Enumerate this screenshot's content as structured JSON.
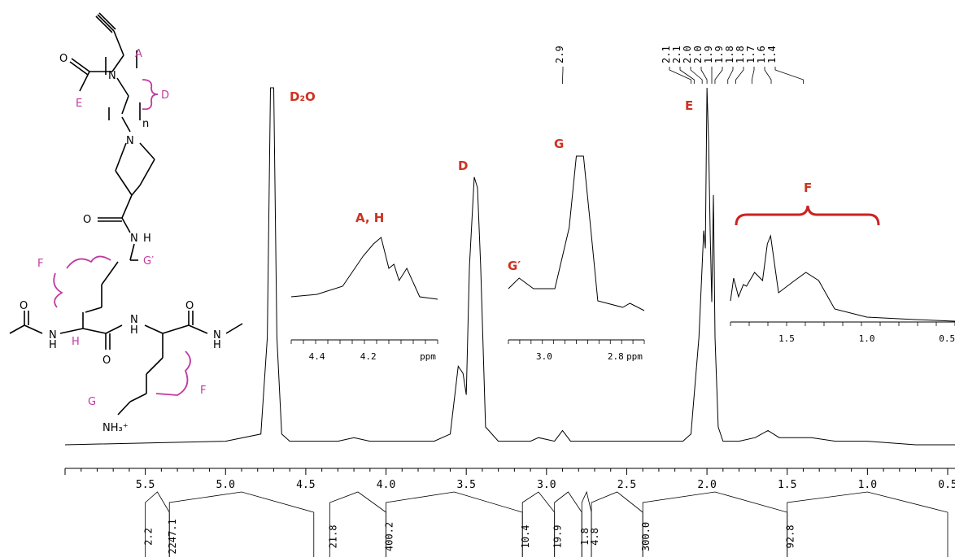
{
  "chart_data": {
    "type": "line",
    "title": "",
    "xlabel": "",
    "ylabel": "",
    "xlim": [
      6.0,
      0.45
    ],
    "x_reversed": true,
    "main_ticks": [
      "5.5",
      "5.0",
      "4.5",
      "4.0",
      "3.5",
      "3.0",
      "2.5",
      "2.0",
      "1.5",
      "1.0",
      "0.5"
    ],
    "peak_top_labels": [
      "2.9",
      "2.1",
      "2.1",
      "2.0",
      "2.0",
      "1.9",
      "1.9",
      "1.8",
      "1.8",
      "1.7",
      "1.6",
      "1.4"
    ],
    "integrals": [
      {
        "label": "2.2",
        "from": 5.5,
        "to": 5.35
      },
      {
        "label": "2247.1",
        "from": 5.35,
        "to": 4.45
      },
      {
        "label": "21.8",
        "from": 4.35,
        "to": 4.0
      },
      {
        "label": "400.2",
        "from": 4.0,
        "to": 3.15
      },
      {
        "label": "10.4",
        "from": 3.15,
        "to": 2.95
      },
      {
        "label": "19.9",
        "from": 2.95,
        "to": 2.78
      },
      {
        "label": "1.8",
        "from": 2.78,
        "to": 2.72
      },
      {
        "label": "4.8",
        "from": 2.72,
        "to": 2.4
      },
      {
        "label": "300.0",
        "from": 2.4,
        "to": 1.5
      },
      {
        "label": "92.8",
        "from": 1.5,
        "to": 0.5
      }
    ],
    "peak_labels": {
      "d2o": "D₂O",
      "ah": "A, H",
      "d": "D",
      "g_prime": "G′",
      "g": "G",
      "e": "E",
      "f": "F"
    },
    "insets": [
      {
        "ticks": [
          "4.4",
          "4.2"
        ],
        "unit": "ppm"
      },
      {
        "ticks": [
          "3.0",
          "2.8"
        ],
        "unit": "ppm"
      },
      {
        "ticks": [
          "1.5",
          "1.0",
          "0.5"
        ],
        "unit": ""
      }
    ],
    "series": [
      {
        "x": [
          6.0,
          5.0,
          4.78,
          4.74,
          4.72,
          4.7,
          4.68,
          4.65,
          4.6,
          4.3,
          4.2,
          4.1,
          3.7,
          3.6,
          3.55,
          3.52,
          3.5,
          3.48,
          3.45,
          3.43,
          3.41,
          3.38,
          3.3,
          3.1,
          3.05,
          2.95,
          2.9,
          2.85,
          2.5,
          2.15,
          2.1,
          2.05,
          2.02,
          2.01,
          2.0,
          1.99,
          1.98,
          1.97,
          1.96,
          1.95,
          1.93,
          1.9,
          1.8,
          1.7,
          1.62,
          1.55,
          1.45,
          1.35,
          1.2,
          1.0,
          0.7,
          0.45
        ],
        "y": [
          0.0,
          0.01,
          0.03,
          0.3,
          1.0,
          1.0,
          0.3,
          0.03,
          0.01,
          0.01,
          0.02,
          0.01,
          0.01,
          0.03,
          0.22,
          0.2,
          0.14,
          0.5,
          0.75,
          0.72,
          0.5,
          0.05,
          0.01,
          0.01,
          0.02,
          0.01,
          0.04,
          0.01,
          0.01,
          0.01,
          0.03,
          0.3,
          0.6,
          0.55,
          1.0,
          0.85,
          0.6,
          0.4,
          0.7,
          0.3,
          0.05,
          0.01,
          0.01,
          0.02,
          0.04,
          0.02,
          0.02,
          0.02,
          0.01,
          0.01,
          0.0,
          0.0
        ]
      }
    ]
  },
  "structure": {
    "labels": {
      "a": "A",
      "d": "D",
      "e": "E",
      "n": "n",
      "o1": "O",
      "o2": "O",
      "nh1": "N",
      "nh1h": "H",
      "gp": "G′",
      "f1": "F",
      "f2": "F",
      "o3": "O",
      "o4": "O",
      "o5": "O",
      "nh2": "N",
      "nh2h": "H",
      "h_alpha": "H",
      "nh3": "N",
      "nh3h": "H",
      "nh4": "N",
      "nh4h": "H",
      "g": "G",
      "amine": "NH₃⁺",
      "n_top": "N",
      "n_pip": "N"
    }
  }
}
